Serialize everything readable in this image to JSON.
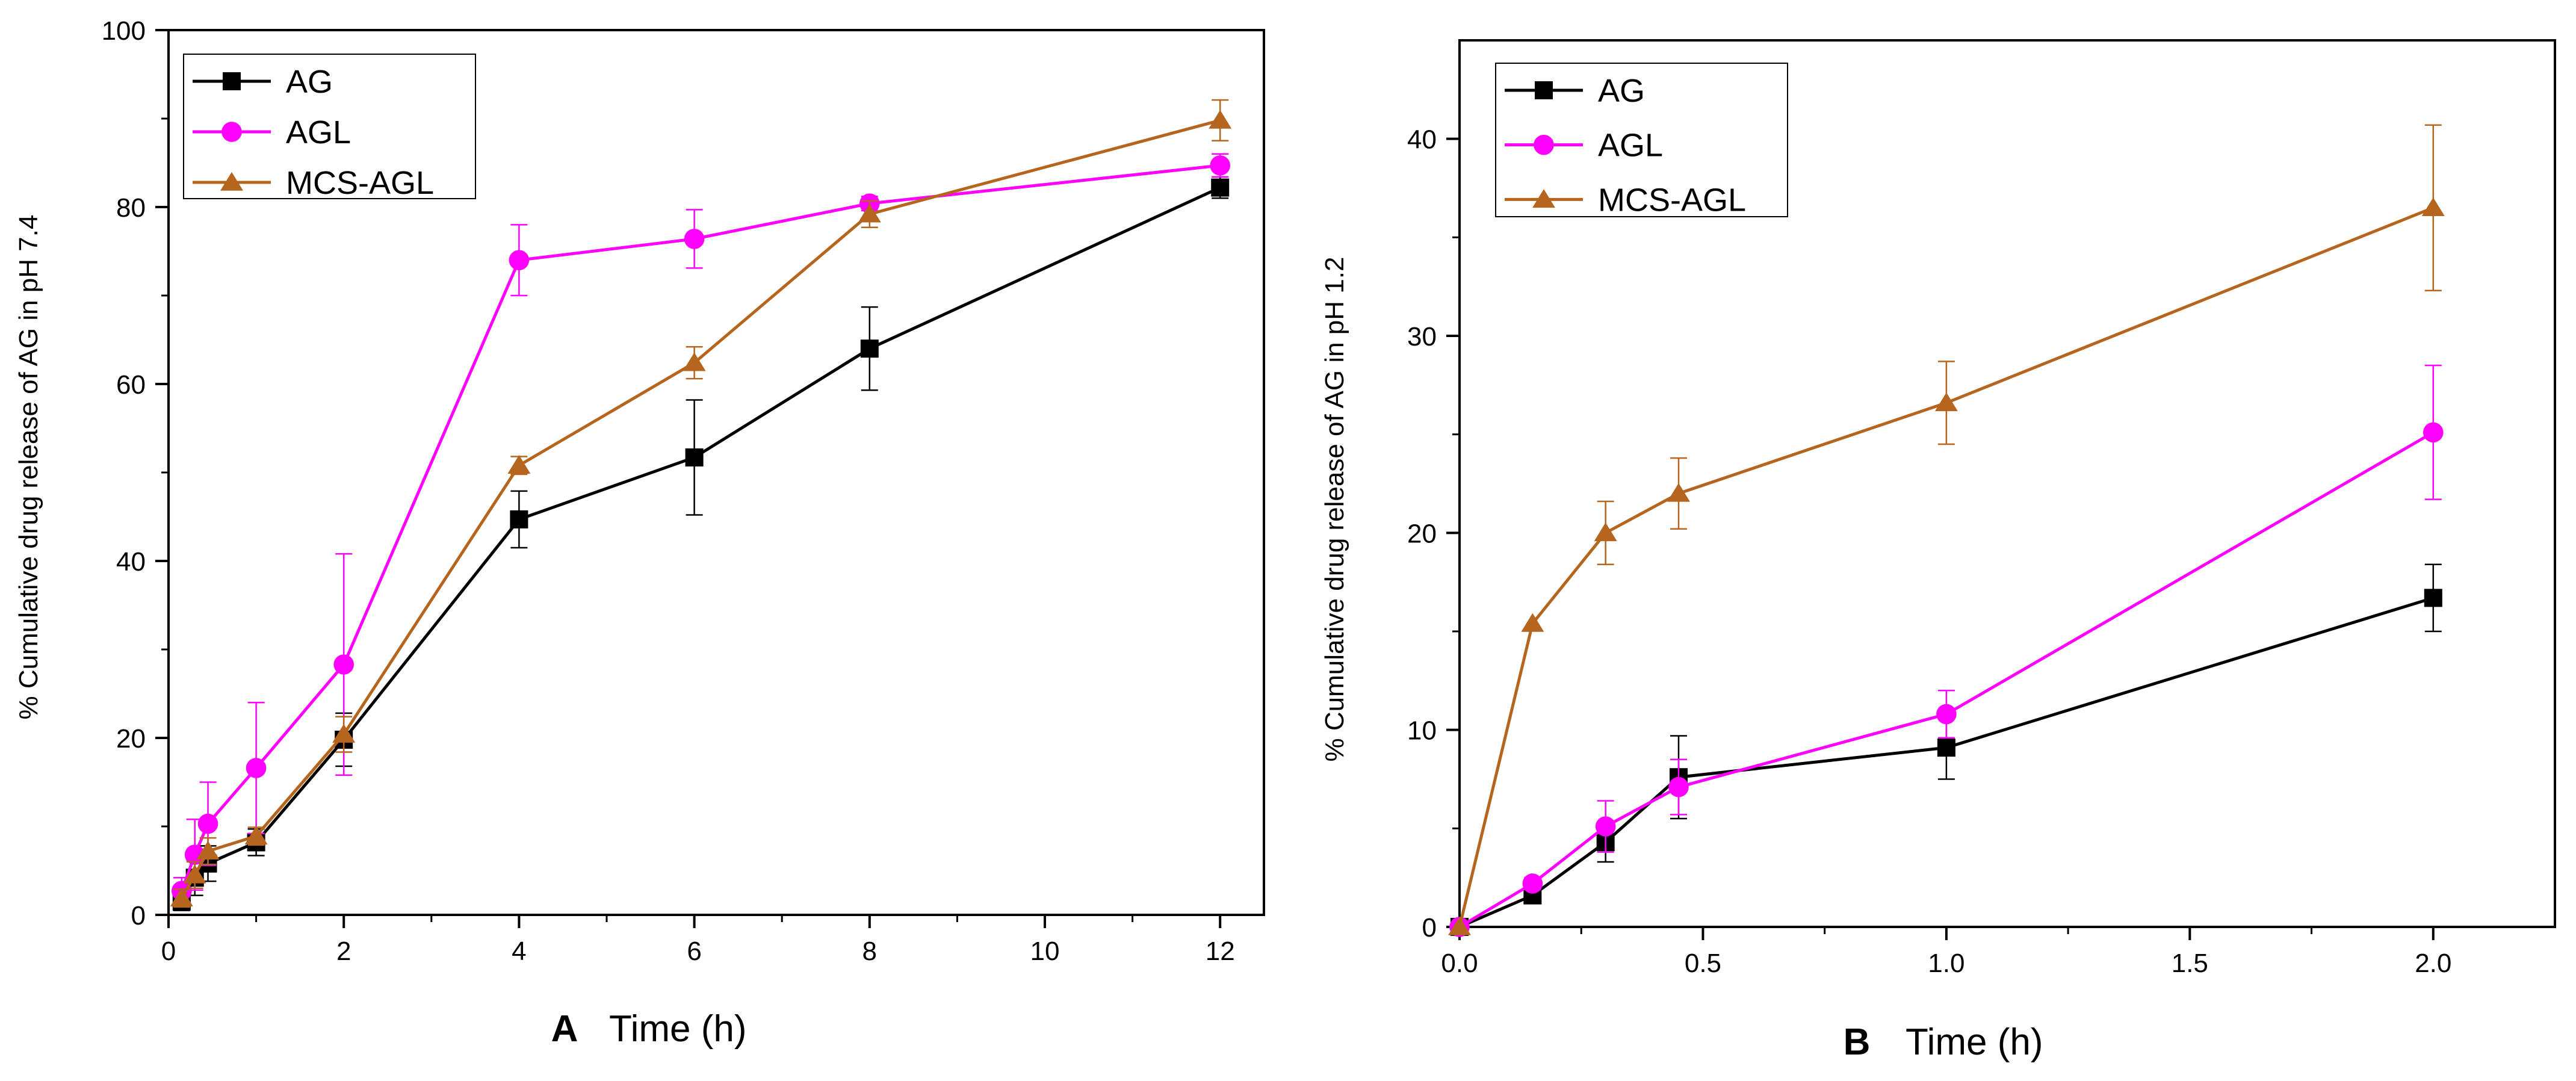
{
  "colors": {
    "AG": "#000000",
    "AGL": "#ff00ff",
    "MCS-AGL": "#b5651d"
  },
  "chart_data": [
    {
      "panel": "A",
      "type": "line",
      "title": "",
      "panel_label": "A",
      "xlabel": "Time (h)",
      "ylabel": "% Cumulative drug release of AG in pH 7.4",
      "xlim": [
        0,
        12.5
      ],
      "ylim": [
        0,
        100
      ],
      "xticks": [
        0,
        2,
        4,
        6,
        8,
        10,
        12
      ],
      "yticks": [
        0,
        20,
        40,
        60,
        80,
        100
      ],
      "xtick_labels": [
        "0",
        "2",
        "4",
        "6",
        "8",
        "10",
        "12"
      ],
      "ytick_labels": [
        "0",
        "20",
        "40",
        "60",
        "80",
        "100"
      ],
      "legend_position": "top-left",
      "series": [
        {
          "name": "AG",
          "marker": "square",
          "x": [
            0.15,
            0.3,
            0.45,
            1,
            2,
            4,
            6,
            8,
            12
          ],
          "y": [
            1.5,
            4.2,
            5.8,
            8.2,
            19.8,
            44.7,
            51.7,
            64.0,
            82.2
          ],
          "err": [
            1.0,
            2.0,
            2.0,
            1.5,
            3.0,
            3.2,
            6.5,
            4.7,
            1.2
          ]
        },
        {
          "name": "AGL",
          "marker": "circle",
          "x": [
            0.15,
            0.3,
            0.45,
            1,
            2,
            4,
            6,
            8,
            12
          ],
          "y": [
            2.7,
            6.8,
            10.3,
            16.6,
            28.3,
            74.0,
            76.4,
            80.4,
            84.7
          ],
          "err": [
            1.5,
            4.0,
            4.7,
            7.4,
            12.5,
            4.0,
            3.3,
            0.8,
            1.3
          ]
        },
        {
          "name": "MCS-AGL",
          "marker": "triangle",
          "x": [
            0.15,
            0.3,
            0.45,
            1,
            2,
            4,
            6,
            8,
            12
          ],
          "y": [
            1.9,
            4.5,
            7.2,
            8.9,
            20.4,
            50.8,
            62.4,
            79.2,
            89.8
          ],
          "err": [
            1.0,
            1.5,
            1.5,
            1.0,
            2.0,
            1.0,
            1.8,
            1.5,
            2.3
          ]
        }
      ]
    },
    {
      "panel": "B",
      "type": "line",
      "title": "",
      "panel_label": "B",
      "xlabel": "Time (h)",
      "ylabel": "% Cumulative drug release of AG in pH 1.2",
      "xlim": [
        0,
        2.25
      ],
      "ylim": [
        0,
        45
      ],
      "xticks": [
        0,
        0.5,
        1,
        1.5,
        2
      ],
      "yticks": [
        0,
        10,
        20,
        30,
        40
      ],
      "xtick_labels": [
        "0.0",
        "0.5",
        "1.0",
        "1.5",
        "2.0"
      ],
      "ytick_labels": [
        "0",
        "10",
        "20",
        "30",
        "40"
      ],
      "legend_position": "top-left",
      "series": [
        {
          "name": "AG",
          "marker": "square",
          "x": [
            0,
            0.15,
            0.3,
            0.45,
            1,
            2
          ],
          "y": [
            0,
            1.6,
            4.3,
            7.6,
            9.1,
            16.7
          ],
          "err": [
            0,
            0.3,
            1.0,
            2.1,
            1.6,
            1.7
          ]
        },
        {
          "name": "AGL",
          "marker": "circle",
          "x": [
            0,
            0.15,
            0.3,
            0.45,
            1,
            2
          ],
          "y": [
            0,
            2.2,
            5.1,
            7.1,
            10.8,
            25.1
          ],
          "err": [
            0,
            0.3,
            1.3,
            1.4,
            1.2,
            3.4
          ]
        },
        {
          "name": "MCS-AGL",
          "marker": "triangle",
          "x": [
            0,
            0.15,
            0.3,
            0.45,
            1,
            2
          ],
          "y": [
            0,
            15.4,
            20.0,
            22.0,
            26.6,
            36.5
          ],
          "err": [
            0,
            0,
            1.6,
            1.8,
            2.1,
            4.2
          ]
        }
      ]
    }
  ]
}
